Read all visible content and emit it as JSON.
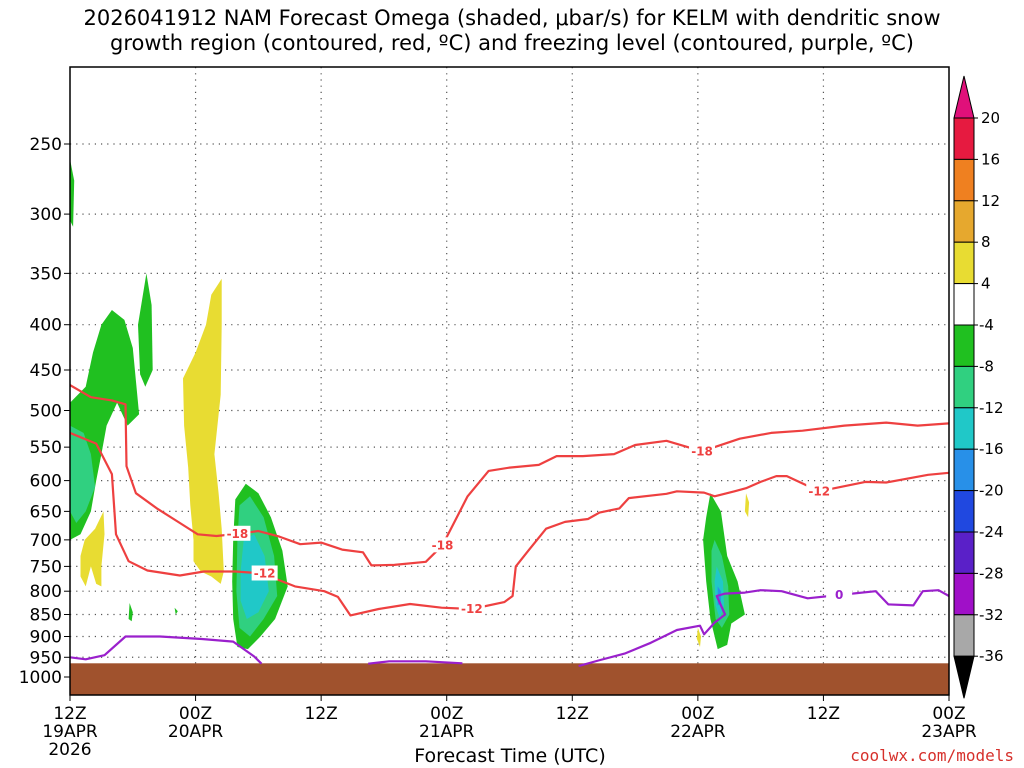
{
  "title_line1": "2026041912 NAM Forecast Omega (shaded, μbar/s) for KELM with dendritic snow",
  "title_line2": "growth region (contoured, red, ºC) and freezing level (contoured, purple, ºC)",
  "credit": "coolwx.com/models",
  "chart_data": {
    "type": "time-height cross section",
    "title": "2026041912 NAM Forecast Omega (shaded, μbar/s) for KELM with dendritic snow growth region (contoured, red, ºC) and freezing level (contoured, purple, ºC)",
    "xlabel": "Forecast Time (UTC)",
    "ylabel": "",
    "x_range_hours": [
      0,
      84
    ],
    "x_ticks": [
      {
        "hour": 0,
        "lines": [
          "12Z",
          "19APR",
          "2026"
        ]
      },
      {
        "hour": 12,
        "lines": [
          "00Z",
          "20APR"
        ]
      },
      {
        "hour": 24,
        "lines": [
          "12Z"
        ]
      },
      {
        "hour": 36,
        "lines": [
          "00Z",
          "21APR"
        ]
      },
      {
        "hour": 48,
        "lines": [
          "12Z"
        ]
      },
      {
        "hour": 60,
        "lines": [
          "00Z",
          "22APR"
        ]
      },
      {
        "hour": 72,
        "lines": [
          "12Z"
        ]
      },
      {
        "hour": 84,
        "lines": [
          "00Z",
          "23APR"
        ]
      }
    ],
    "y_levels_hpa": [
      250,
      300,
      350,
      400,
      450,
      500,
      550,
      600,
      650,
      700,
      750,
      800,
      850,
      900,
      950,
      1000
    ],
    "y_range_hpa": [
      200,
      1040
    ],
    "y_scale": "log-pressure",
    "grid": true,
    "colorbar": {
      "labels": [
        20,
        16,
        12,
        8,
        4,
        -4,
        -8,
        -12,
        -16,
        -20,
        -24,
        -28,
        -32,
        -36
      ],
      "colors": [
        "#e61a40",
        "#ef8020",
        "#e6a82e",
        "#e8dc32",
        "#ffffff",
        "#20c020",
        "#30d080",
        "#20c8c8",
        "#2890e8",
        "#2048e0",
        "#5a20c8",
        "#a010c8",
        "#a8a8a8"
      ],
      "top_arrow": "#e0107a",
      "bottom_arrow": "#000000"
    },
    "omega_regions": [
      {
        "value": -4,
        "color": "#20c020",
        "points": [
          [
            0,
            260
          ],
          [
            0.4,
            275
          ],
          [
            0.3,
            310
          ],
          [
            0,
            305
          ]
        ]
      },
      {
        "value": -4,
        "color": "#20c020",
        "points": [
          [
            0,
            490
          ],
          [
            1.5,
            470
          ],
          [
            2.2,
            430
          ],
          [
            3,
            400
          ],
          [
            4,
            385
          ],
          [
            5.2,
            395
          ],
          [
            6,
            425
          ],
          [
            6.6,
            505
          ],
          [
            5.5,
            520
          ],
          [
            4.5,
            490
          ],
          [
            3.5,
            520
          ],
          [
            3,
            560
          ],
          [
            2.5,
            600
          ],
          [
            2,
            650
          ],
          [
            1,
            690
          ],
          [
            0,
            700
          ]
        ]
      },
      {
        "value": -4,
        "color": "#20c020",
        "points": [
          [
            6.5,
            400
          ],
          [
            7.3,
            350
          ],
          [
            7.8,
            380
          ],
          [
            7.9,
            450
          ],
          [
            7.2,
            470
          ],
          [
            6.7,
            455
          ]
        ]
      },
      {
        "value": -8,
        "color": "#30d080",
        "points": [
          [
            0,
            520
          ],
          [
            1.3,
            530
          ],
          [
            2,
            560
          ],
          [
            2.4,
            610
          ],
          [
            1.5,
            650
          ],
          [
            0.6,
            670
          ],
          [
            0,
            650
          ]
        ]
      },
      {
        "value": -4,
        "color": "#20c020",
        "points": [
          [
            5.7,
            825
          ],
          [
            6.0,
            845
          ],
          [
            5.9,
            865
          ],
          [
            5.6,
            860
          ]
        ]
      },
      {
        "value": -4,
        "color": "#20c020",
        "points": [
          [
            10,
            835
          ],
          [
            10.3,
            843
          ],
          [
            10.1,
            850
          ]
        ]
      },
      {
        "value": -4,
        "color": "#20c020",
        "points": [
          [
            15.8,
            630
          ],
          [
            16.8,
            605
          ],
          [
            18,
            620
          ],
          [
            19.2,
            660
          ],
          [
            20.3,
            720
          ],
          [
            20.8,
            790
          ],
          [
            19.6,
            860
          ],
          [
            18.2,
            900
          ],
          [
            17,
            930
          ],
          [
            16,
            925
          ],
          [
            15.6,
            860
          ],
          [
            15.5,
            780
          ],
          [
            15.6,
            700
          ]
        ]
      },
      {
        "value": -8,
        "color": "#30d080",
        "points": [
          [
            16.2,
            640
          ],
          [
            17.2,
            625
          ],
          [
            18.5,
            660
          ],
          [
            19.5,
            730
          ],
          [
            19.8,
            810
          ],
          [
            18.5,
            860
          ],
          [
            17.2,
            900
          ],
          [
            16.2,
            880
          ],
          [
            15.9,
            800
          ],
          [
            16.0,
            700
          ]
        ]
      },
      {
        "value": -12,
        "color": "#20c8c8",
        "points": [
          [
            16.6,
            700
          ],
          [
            17.6,
            690
          ],
          [
            18.6,
            730
          ],
          [
            19,
            800
          ],
          [
            18,
            845
          ],
          [
            16.9,
            860
          ],
          [
            16.3,
            820
          ],
          [
            16.3,
            760
          ]
        ]
      },
      {
        "value": -4,
        "color": "#20c020",
        "points": [
          [
            61.2,
            620
          ],
          [
            62.2,
            650
          ],
          [
            62.8,
            730
          ],
          [
            63.8,
            780
          ],
          [
            64.5,
            850
          ],
          [
            63.2,
            870
          ],
          [
            62.8,
            920
          ],
          [
            61.9,
            930
          ],
          [
            61.2,
            860
          ],
          [
            60.8,
            780
          ],
          [
            60.5,
            700
          ],
          [
            60.8,
            660
          ]
        ]
      },
      {
        "value": -8,
        "color": "#30d080",
        "points": [
          [
            61.6,
            700
          ],
          [
            62.3,
            730
          ],
          [
            62.9,
            790
          ],
          [
            63,
            850
          ],
          [
            62.3,
            880
          ],
          [
            61.7,
            860
          ],
          [
            61.3,
            780
          ],
          [
            61.3,
            720
          ]
        ]
      },
      {
        "value": -12,
        "color": "#20c8c8",
        "points": [
          [
            61.8,
            750
          ],
          [
            62.4,
            780
          ],
          [
            62.5,
            830
          ],
          [
            62.1,
            860
          ],
          [
            61.7,
            830
          ],
          [
            61.6,
            780
          ]
        ]
      },
      {
        "value": -16,
        "color": "#2890e8",
        "points": [
          [
            61.9,
            790
          ],
          [
            62.2,
            800
          ],
          [
            62.2,
            825
          ],
          [
            61.9,
            830
          ]
        ]
      },
      {
        "value": 4,
        "color": "#e8dc32",
        "points": [
          [
            10.8,
            460
          ],
          [
            12,
            430
          ],
          [
            13,
            400
          ],
          [
            13.5,
            370
          ],
          [
            14.5,
            355
          ],
          [
            14.5,
            400
          ],
          [
            14.4,
            480
          ],
          [
            13.8,
            560
          ],
          [
            14.2,
            620
          ],
          [
            14.5,
            680
          ],
          [
            14.7,
            760
          ],
          [
            14.4,
            785
          ],
          [
            13.5,
            770
          ],
          [
            12.5,
            760
          ],
          [
            11.8,
            740
          ],
          [
            11.8,
            700
          ],
          [
            11.5,
            640
          ],
          [
            11.3,
            580
          ],
          [
            10.9,
            520
          ]
        ]
      },
      {
        "value": 4,
        "color": "#e8dc32",
        "points": [
          [
            1.4,
            700
          ],
          [
            2.4,
            680
          ],
          [
            3.2,
            650
          ],
          [
            3.3,
            690
          ],
          [
            3.0,
            750
          ],
          [
            3.0,
            790
          ],
          [
            2.5,
            785
          ],
          [
            2.0,
            750
          ],
          [
            1.5,
            790
          ],
          [
            1.0,
            770
          ],
          [
            1.0,
            730
          ]
        ]
      },
      {
        "value": 4,
        "color": "#e8dc32",
        "points": [
          [
            64.6,
            620
          ],
          [
            64.9,
            635
          ],
          [
            64.8,
            660
          ],
          [
            64.5,
            650
          ]
        ]
      },
      {
        "value": 4,
        "color": "#e8dc32",
        "points": [
          [
            60.0,
            880
          ],
          [
            60.3,
            900
          ],
          [
            60.2,
            925
          ],
          [
            59.9,
            905
          ]
        ]
      }
    ],
    "dgz_contours": [
      {
        "label": "-18",
        "label_points": [
          [
            16,
            689
          ],
          [
            60.4,
            556
          ],
          [
            35.6,
            710
          ]
        ],
        "points": [
          [
            0,
            468
          ],
          [
            2,
            483
          ],
          [
            4,
            487
          ],
          [
            5.3,
            492
          ],
          [
            5.4,
            578
          ],
          [
            6.3,
            620
          ],
          [
            8.3,
            645
          ],
          [
            10.5,
            670
          ],
          [
            12.2,
            690
          ],
          [
            14,
            693
          ],
          [
            16,
            689
          ],
          [
            18,
            684
          ],
          [
            20,
            694
          ],
          [
            22,
            708
          ],
          [
            24,
            705
          ],
          [
            26,
            718
          ],
          [
            28,
            723
          ],
          [
            28.8,
            748
          ],
          [
            31,
            747
          ],
          [
            34,
            741
          ],
          [
            35.6,
            710
          ],
          [
            38,
            625
          ],
          [
            40,
            585
          ],
          [
            42,
            580
          ],
          [
            44.8,
            576
          ],
          [
            46.5,
            563
          ],
          [
            49,
            563
          ],
          [
            52,
            560
          ],
          [
            54,
            547
          ],
          [
            57,
            541
          ],
          [
            60.4,
            556
          ],
          [
            64,
            538
          ],
          [
            67,
            530
          ],
          [
            70,
            527
          ],
          [
            74,
            520
          ],
          [
            78,
            516
          ],
          [
            81,
            520
          ],
          [
            84,
            517
          ]
        ]
      },
      {
        "label": "-12",
        "label_points": [
          [
            18.6,
            764
          ],
          [
            38.4,
            838
          ],
          [
            71.6,
            617
          ]
        ],
        "points": [
          [
            0,
            530
          ],
          [
            2.5,
            545
          ],
          [
            4,
            590
          ],
          [
            4.4,
            690
          ],
          [
            5.6,
            740
          ],
          [
            7.4,
            758
          ],
          [
            10.5,
            768
          ],
          [
            12.8,
            760
          ],
          [
            15.8,
            760
          ],
          [
            18.6,
            764
          ],
          [
            19.7,
            775
          ],
          [
            21.5,
            790
          ],
          [
            24.3,
            800
          ],
          [
            25.6,
            812
          ],
          [
            26.8,
            852
          ],
          [
            29.5,
            838
          ],
          [
            32.5,
            827
          ],
          [
            35.5,
            835
          ],
          [
            38.4,
            838
          ],
          [
            41.5,
            823
          ],
          [
            42.3,
            810
          ],
          [
            42.6,
            750
          ],
          [
            43.8,
            720
          ],
          [
            45.5,
            680
          ],
          [
            47.3,
            668
          ],
          [
            49.5,
            663
          ],
          [
            50.6,
            652
          ],
          [
            52.5,
            645
          ],
          [
            53.4,
            628
          ],
          [
            57,
            621
          ],
          [
            58,
            617
          ],
          [
            60.6,
            619
          ],
          [
            61.6,
            625
          ],
          [
            63.5,
            617
          ],
          [
            64.6,
            612
          ],
          [
            66,
            602
          ],
          [
            67.5,
            593
          ],
          [
            68.5,
            593
          ],
          [
            71.6,
            617
          ],
          [
            76,
            602
          ],
          [
            78,
            603
          ],
          [
            82,
            591
          ],
          [
            84,
            588
          ]
        ]
      }
    ],
    "freezing_level": [
      {
        "label": "",
        "points": [
          [
            0,
            950
          ],
          [
            1.5,
            955
          ],
          [
            3.3,
            945
          ],
          [
            5.3,
            900
          ],
          [
            8.6,
            900
          ],
          [
            12.6,
            906
          ],
          [
            15.6,
            912
          ],
          [
            17.6,
            948
          ],
          [
            18.3,
            966
          ]
        ]
      },
      {
        "label": "",
        "points": [
          [
            28.5,
            966
          ],
          [
            30.5,
            960
          ],
          [
            34,
            960
          ],
          [
            37.5,
            965
          ]
        ]
      },
      {
        "label": "0",
        "label_points": [
          [
            73.5,
            808
          ]
        ],
        "points": [
          [
            48.6,
            972
          ],
          [
            50.5,
            958
          ],
          [
            53,
            941
          ],
          [
            55.5,
            915
          ],
          [
            58,
            885
          ],
          [
            60.2,
            875
          ],
          [
            60.6,
            895
          ],
          [
            61.6,
            868
          ],
          [
            62.6,
            850
          ],
          [
            61.8,
            810
          ],
          [
            62.6,
            805
          ],
          [
            64.5,
            803
          ],
          [
            66,
            798
          ],
          [
            68,
            800
          ],
          [
            70.5,
            815
          ],
          [
            73.5,
            808
          ],
          [
            77,
            800
          ],
          [
            78.2,
            828
          ],
          [
            80.6,
            830
          ],
          [
            81.5,
            800
          ],
          [
            83,
            798
          ],
          [
            84,
            810
          ]
        ]
      }
    ],
    "terrain_top_hpa": 965
  }
}
